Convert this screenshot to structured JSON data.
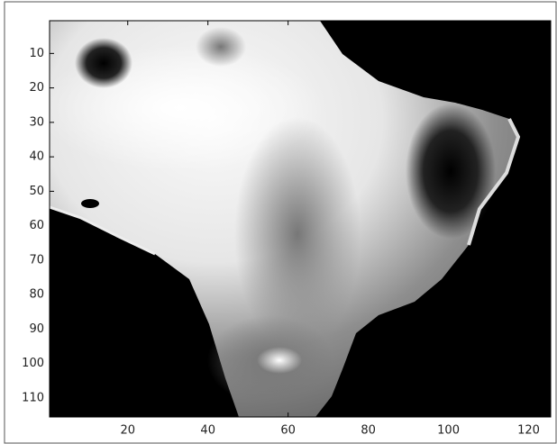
{
  "chart_data": {
    "type": "image",
    "xlim": [
      0.5,
      125.5
    ],
    "ylim": [
      0.5,
      115.5
    ],
    "y_reversed": true,
    "xticks": [
      20,
      40,
      60,
      80,
      100,
      120
    ],
    "yticks": [
      10,
      20,
      30,
      40,
      50,
      60,
      70,
      80,
      90,
      100,
      110
    ],
    "colormap": "gray"
  }
}
